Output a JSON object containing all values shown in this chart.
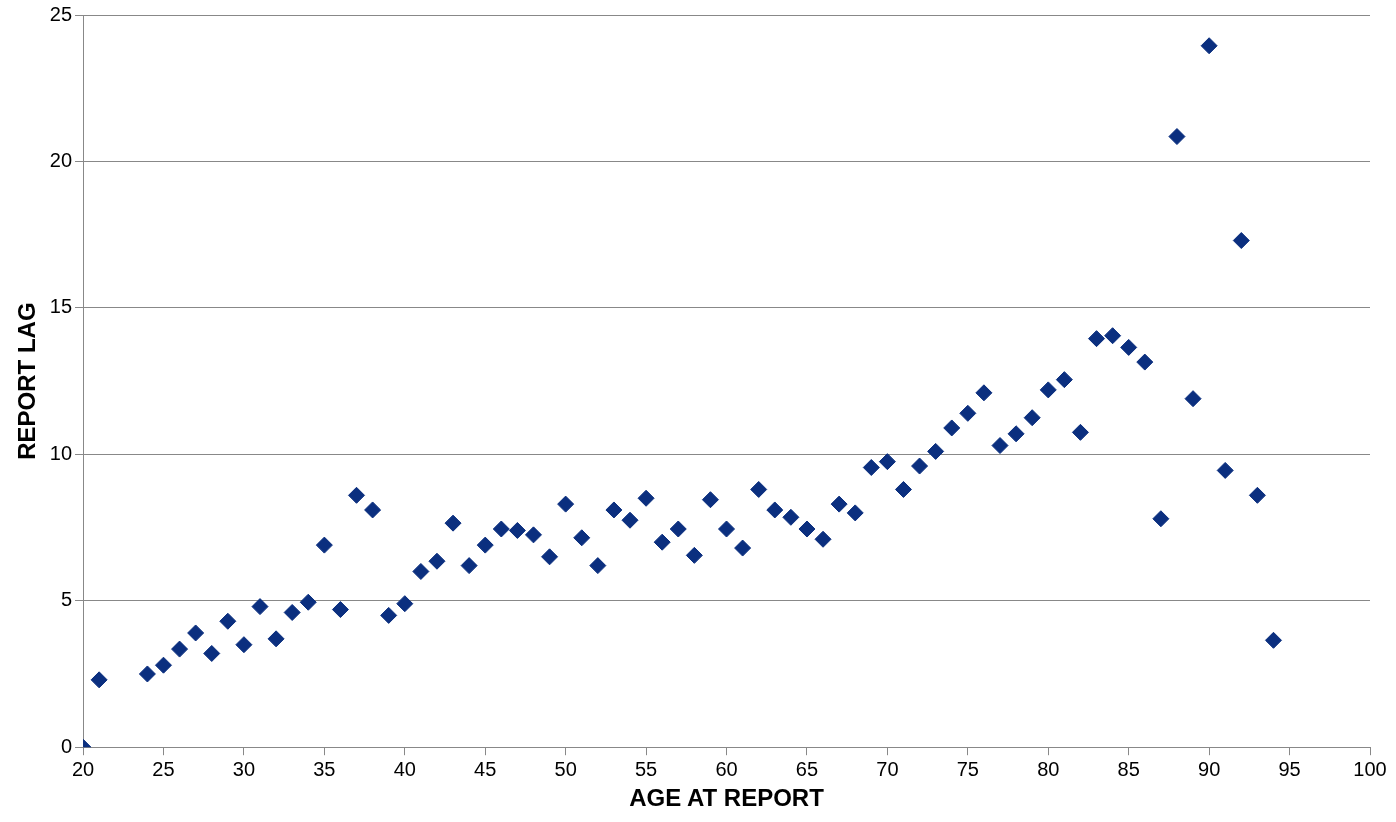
{
  "chart_data": {
    "type": "scatter",
    "xlabel": "AGE AT REPORT",
    "ylabel": "REPORT LAG",
    "x": [
      20,
      21,
      24,
      25,
      26,
      27,
      28,
      29,
      30,
      31,
      32,
      33,
      34,
      35,
      36,
      37,
      38,
      39,
      40,
      41,
      42,
      43,
      44,
      45,
      46,
      47,
      48,
      49,
      50,
      51,
      52,
      53,
      54,
      55,
      56,
      57,
      58,
      59,
      60,
      61,
      62,
      63,
      64,
      65,
      66,
      67,
      68,
      69,
      70,
      71,
      72,
      73,
      74,
      75,
      76,
      77,
      78,
      79,
      80,
      81,
      82,
      83,
      84,
      85,
      86,
      87,
      88,
      89,
      90,
      91,
      92,
      93,
      94
    ],
    "series": [
      {
        "color": "#0b2f7f",
        "values": [
          0,
          2.3,
          2.5,
          2.8,
          3.35,
          3.9,
          3.2,
          4.3,
          3.5,
          4.8,
          3.7,
          4.6,
          4.95,
          6.9,
          4.7,
          8.6,
          8.1,
          4.5,
          4.9,
          6.0,
          6.35,
          7.65,
          6.2,
          6.9,
          7.45,
          7.4,
          7.25,
          6.5,
          8.3,
          7.15,
          6.2,
          8.1,
          7.75,
          8.5,
          7.0,
          7.45,
          6.55,
          8.45,
          7.45,
          6.8,
          8.8,
          8.1,
          7.85,
          7.45,
          7.1,
          8.3,
          8.0,
          9.55,
          9.75,
          8.8,
          9.6,
          10.1,
          10.9,
          11.4,
          12.1,
          10.3,
          10.7,
          11.25,
          12.2,
          12.55,
          10.75,
          13.95,
          14.05,
          13.65,
          13.15,
          7.8,
          20.85,
          11.9,
          23.95,
          9.45,
          17.3,
          8.6,
          3.65
        ]
      }
    ],
    "xlim": [
      20,
      100
    ],
    "xticks": [
      20,
      25,
      30,
      35,
      40,
      45,
      50,
      55,
      60,
      65,
      70,
      75,
      80,
      85,
      90,
      95,
      100
    ],
    "ylim": [
      0,
      25
    ],
    "yticks": [
      0,
      5,
      10,
      15,
      20,
      25
    ],
    "grid": "y",
    "legend": false,
    "marker": "diamond"
  }
}
